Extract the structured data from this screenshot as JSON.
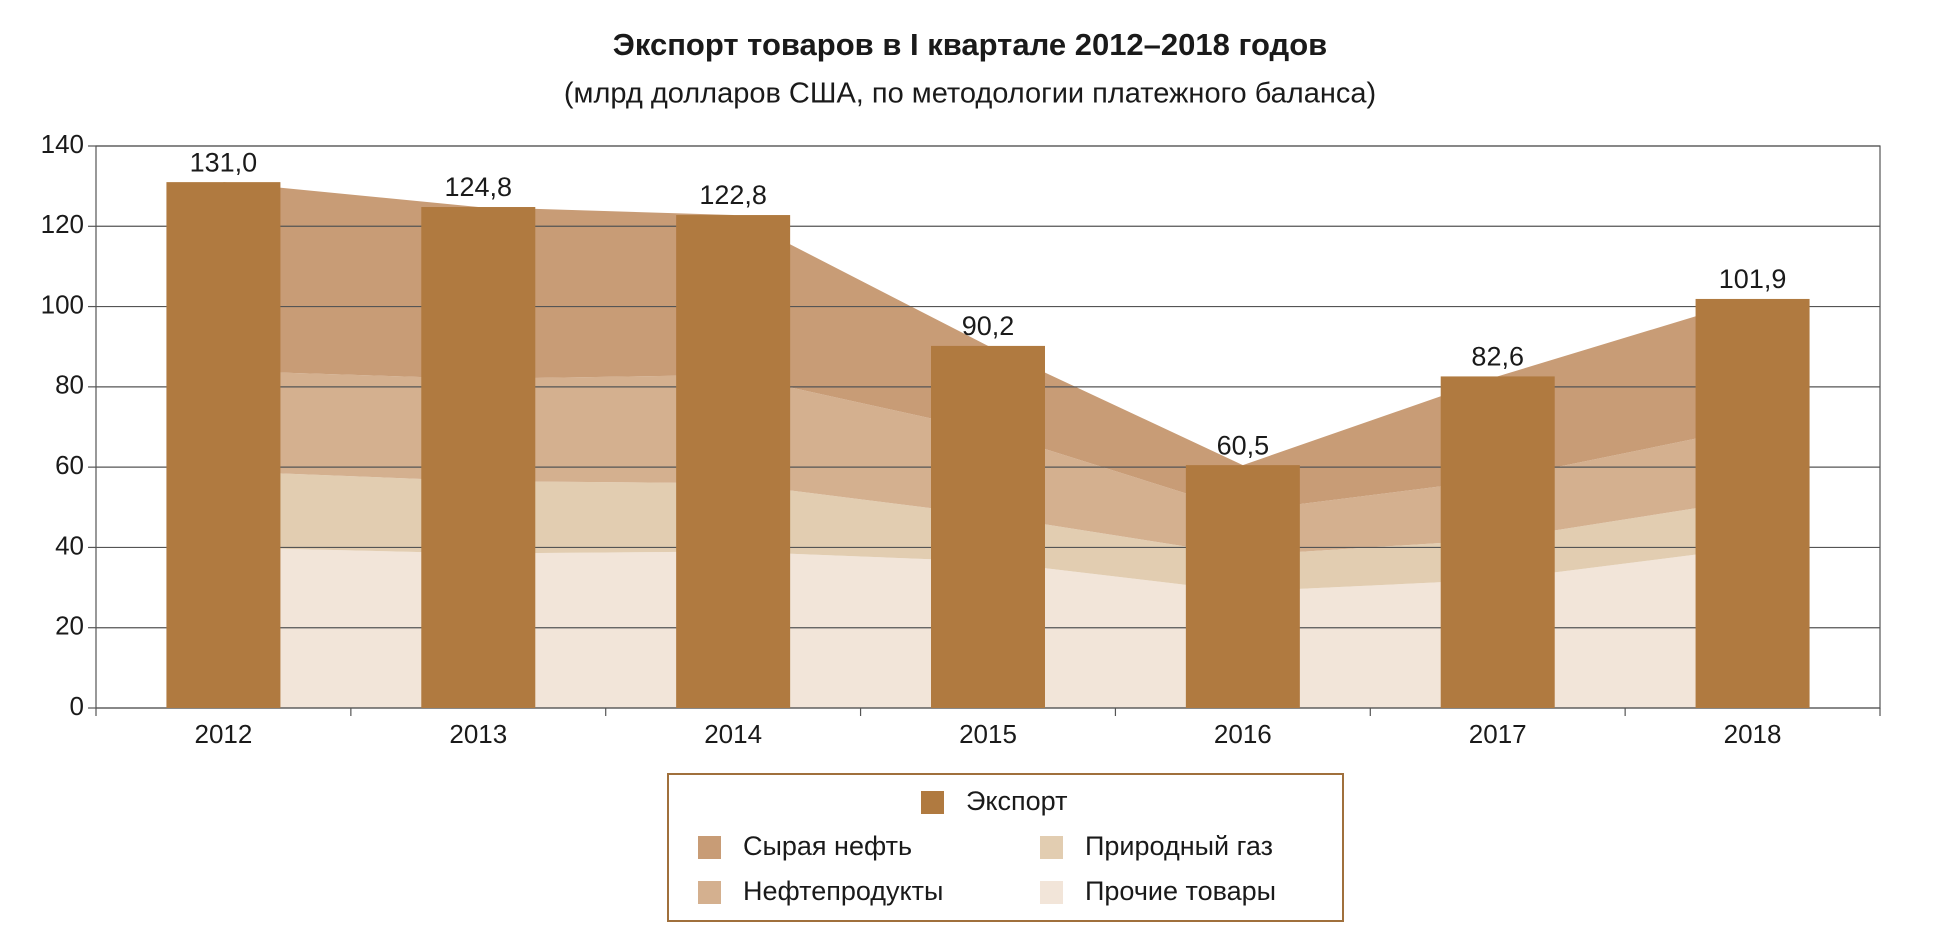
{
  "chart_data": {
    "type": "bar",
    "title": "Экспорт товаров в I квартале 2012–2018 годов",
    "subtitle": "(млрд долларов США, по методологии платежного баланса)",
    "categories": [
      "2012",
      "2013",
      "2014",
      "2015",
      "2016",
      "2017",
      "2018"
    ],
    "ylim": [
      0,
      140
    ],
    "yticks": [
      0,
      20,
      40,
      60,
      80,
      100,
      120,
      140
    ],
    "grid": true,
    "series": [
      {
        "name": "Экспорт",
        "type": "bar",
        "color": "#b07a40",
        "values": [
          131.0,
          124.8,
          122.8,
          90.2,
          60.5,
          82.6,
          101.9
        ],
        "value_labels": [
          "131,0",
          "124,8",
          "122,8",
          "90,2",
          "60,5",
          "82,6",
          "101,9"
        ]
      },
      {
        "name": "Сырая нефть",
        "type": "area",
        "color": "#c89c76",
        "values": [
          47,
          42.8,
          39.8,
          21.2,
          11.5,
          25.6,
          31.9
        ]
      },
      {
        "name": "Нефтепродукты",
        "type": "area",
        "color": "#d4b08f",
        "values": [
          25,
          25.5,
          27,
          21,
          11,
          15,
          18
        ]
      },
      {
        "name": "Природный газ",
        "type": "area",
        "color": "#e2cdb1",
        "values": [
          19,
          18,
          17,
          11.5,
          9,
          10,
          12
        ]
      },
      {
        "name": "Прочие товары",
        "type": "area",
        "color": "#f2e5d9",
        "values": [
          40,
          38.5,
          39,
          36.5,
          29,
          32,
          40
        ]
      }
    ]
  }
}
